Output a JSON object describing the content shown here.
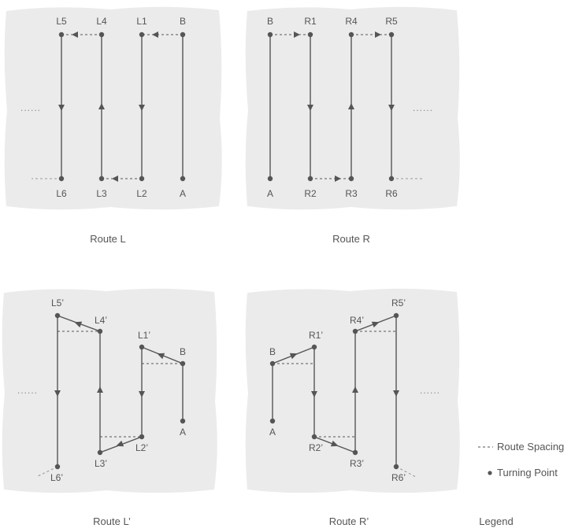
{
  "captions": {
    "route_l": "Route L",
    "route_r": "Route R",
    "route_l_prime": "Route L’",
    "route_r_prime": "Route R’",
    "legend": "Legend"
  },
  "ellipsis": "......",
  "legend": {
    "route_spacing": "Route Spacing",
    "turning_point": "Turning Point"
  },
  "route_l": {
    "L5": "L5",
    "L4": "L4",
    "L1": "L1",
    "B": "B",
    "L6": "L6",
    "L3": "L3",
    "L2": "L2",
    "A": "A"
  },
  "route_r": {
    "B": "B",
    "R1": "R1",
    "R4": "R4",
    "R5": "R5",
    "A": "A",
    "R2": "R2",
    "R3": "R3",
    "R6": "R6"
  },
  "route_l_prime": {
    "L5": "L5’",
    "L4": "L4’",
    "L1": "L1’",
    "B": "B",
    "A": "A",
    "L2": "L2’",
    "L3": "L3’",
    "L6": "L6’"
  },
  "route_r_prime": {
    "R5": "R5’",
    "R4": "R4’",
    "R1": "R1’",
    "B": "B",
    "A": "A",
    "R2": "R2’",
    "R3": "R3’",
    "R6": "R6’"
  }
}
